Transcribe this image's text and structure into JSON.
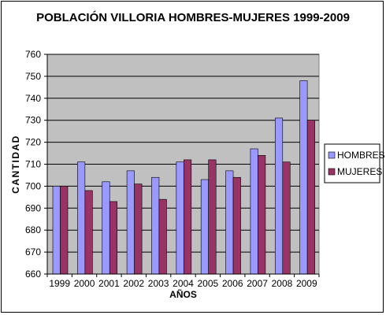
{
  "chart_data": {
    "type": "bar",
    "title": "POBLACIÓN VILLORIA HOMBRES-MUJERES 1999-2009",
    "xlabel": "AÑOS",
    "ylabel": "CANTIDAD",
    "categories": [
      "1999",
      "2000",
      "2001",
      "2002",
      "2003",
      "2004",
      "2005",
      "2006",
      "2007",
      "2008",
      "2009"
    ],
    "series": [
      {
        "name": "HOMBRES",
        "color": "#9999FF",
        "values": [
          700,
          711,
          702,
          707,
          704,
          711,
          703,
          707,
          717,
          731,
          748
        ]
      },
      {
        "name": "MUJERES",
        "color": "#993366",
        "values": [
          700,
          698,
          693,
          701,
          694,
          712,
          712,
          704,
          714,
          711,
          730
        ]
      }
    ],
    "ylim": [
      660,
      760
    ],
    "yticks": [
      660,
      670,
      680,
      690,
      700,
      710,
      720,
      730,
      740,
      750,
      760
    ],
    "grid": true,
    "plot_background": "#C0C0C0",
    "legend_position": "right"
  }
}
